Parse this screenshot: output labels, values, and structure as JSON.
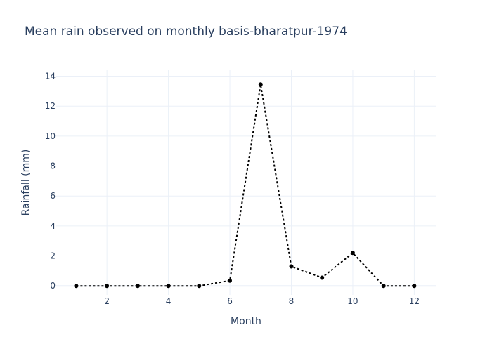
{
  "chart_data": {
    "type": "line",
    "title": "Mean rain observed on monthly basis-bharatpur-1974",
    "xlabel": "Month",
    "ylabel": "Rainfall (mm)",
    "x": [
      1,
      2,
      3,
      4,
      5,
      6,
      7,
      8,
      9,
      10,
      11,
      12
    ],
    "series": [
      {
        "values": [
          0,
          0,
          0,
          0,
          0,
          0.35,
          13.45,
          1.3,
          0.55,
          2.2,
          0,
          0
        ],
        "color": "#000000",
        "line_style": "dotted",
        "markers": true
      }
    ],
    "xlim": [
      0.35,
      12.7
    ],
    "ylim": [
      -0.6,
      14.4
    ],
    "xticks": [
      2,
      4,
      6,
      8,
      10,
      12
    ],
    "yticks": [
      0,
      2,
      4,
      6,
      8,
      10,
      12,
      14
    ],
    "grid": true,
    "legend": "none",
    "colors": {
      "text": "#2a3f5f",
      "grid": "#ebf0f8",
      "background": "#ffffff"
    }
  }
}
